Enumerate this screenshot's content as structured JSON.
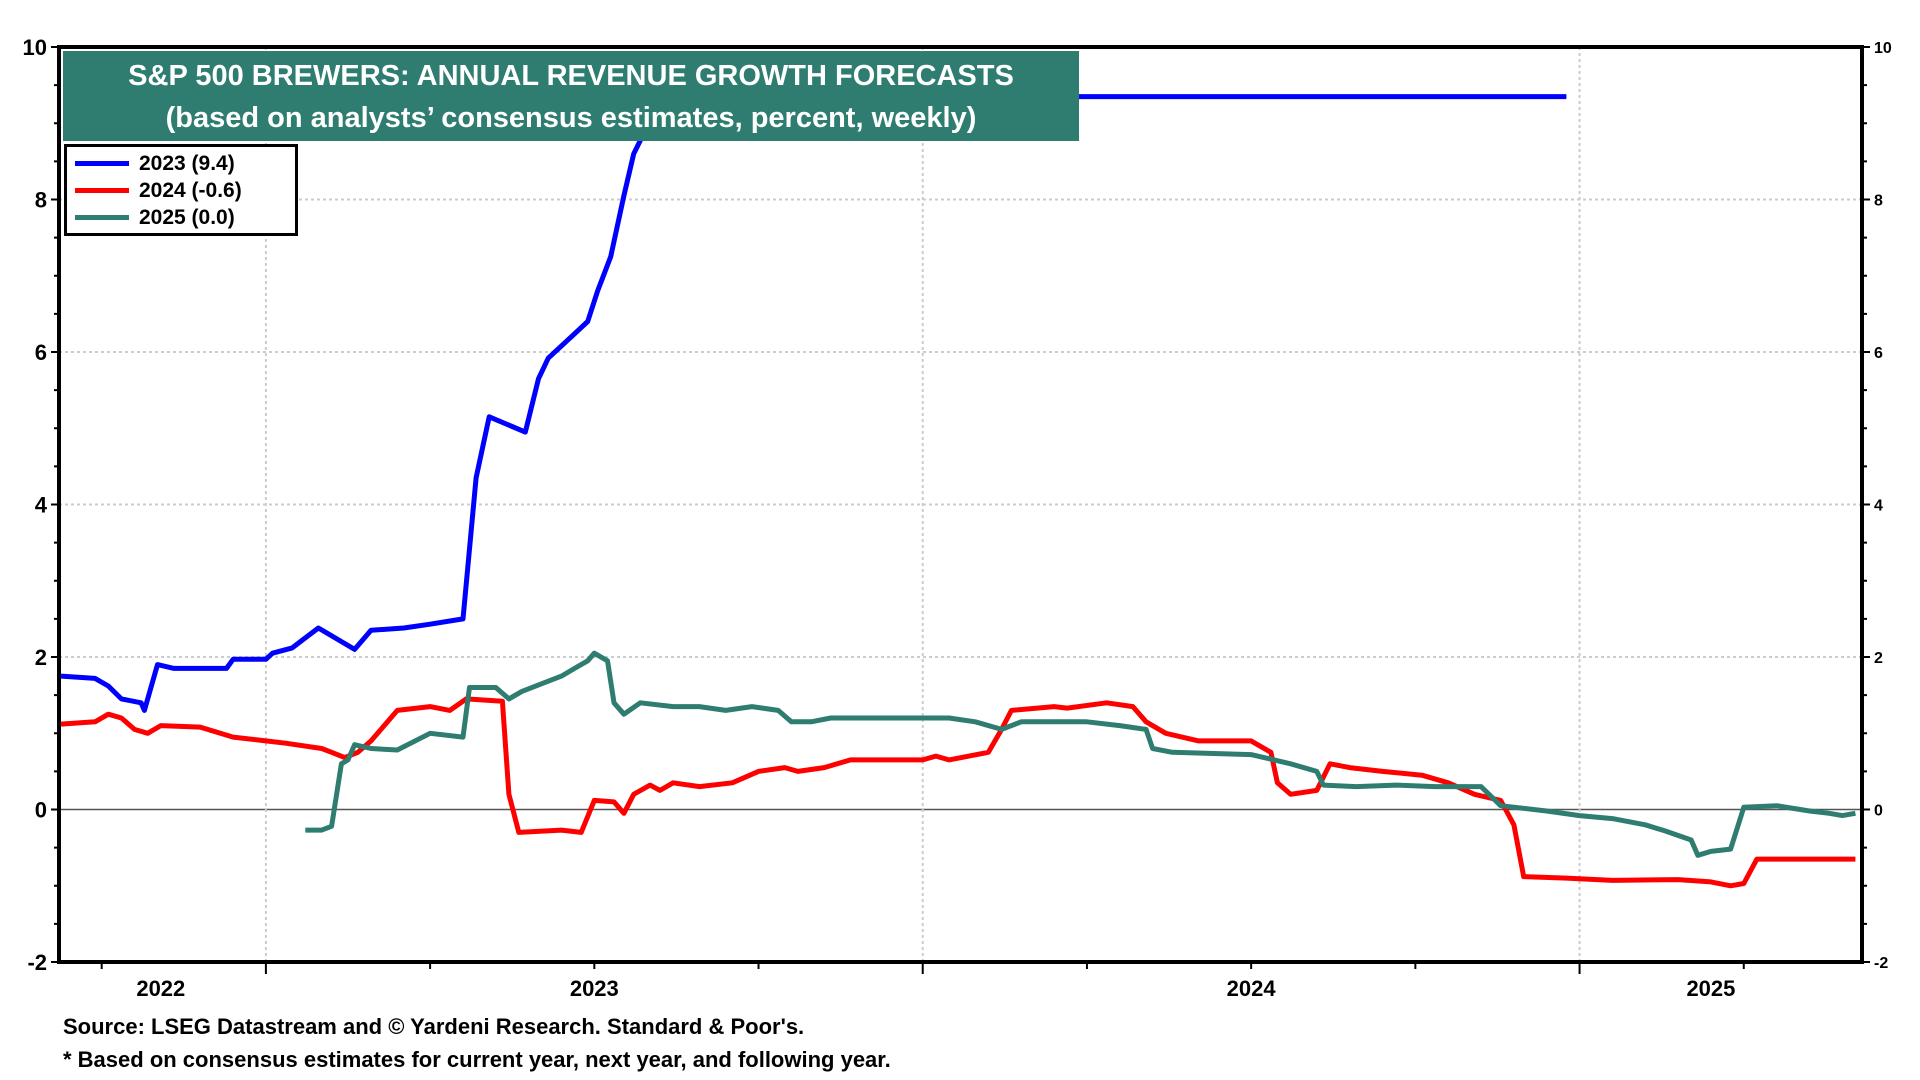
{
  "chart_data": {
    "type": "line",
    "title": "S&P 500 BREWERS: ANNUAL REVENUE GROWTH FORECASTS",
    "subtitle": "(based on analysts’ consensus estimates, percent, weekly)",
    "xlabel": "",
    "ylabel": "",
    "ylim": [
      -2,
      10
    ],
    "yticks": [
      -2,
      0,
      2,
      4,
      6,
      8,
      10
    ],
    "ytick_labels": [
      "-2",
      "0",
      "2",
      "4",
      "6",
      "8",
      "10"
    ],
    "xlim": [
      2022.685,
      2025.43
    ],
    "x_year_labels": [
      {
        "label": "2022",
        "x": 2022.84
      },
      {
        "label": "2023",
        "x": 2023.5
      },
      {
        "label": "2024",
        "x": 2024.5
      },
      {
        "label": "2025",
        "x": 2025.2
      }
    ],
    "year_boundaries": [
      2023,
      2024,
      2025
    ],
    "grid": true,
    "legend_position": "top-left",
    "series": [
      {
        "name": "2023 (9.4)",
        "color": "#0000ff",
        "points": [
          [
            2022.688,
            1.75
          ],
          [
            2022.74,
            1.72
          ],
          [
            2022.76,
            1.62
          ],
          [
            2022.78,
            1.45
          ],
          [
            2022.81,
            1.4
          ],
          [
            2022.815,
            1.3
          ],
          [
            2022.835,
            1.9
          ],
          [
            2022.86,
            1.85
          ],
          [
            2022.94,
            1.85
          ],
          [
            2022.95,
            1.97
          ],
          [
            2023.0,
            1.97
          ],
          [
            2023.01,
            2.05
          ],
          [
            2023.04,
            2.12
          ],
          [
            2023.06,
            2.25
          ],
          [
            2023.08,
            2.38
          ],
          [
            2023.135,
            2.1
          ],
          [
            2023.16,
            2.35
          ],
          [
            2023.21,
            2.38
          ],
          [
            2023.25,
            2.43
          ],
          [
            2023.3,
            2.5
          ],
          [
            2023.32,
            4.35
          ],
          [
            2023.34,
            5.15
          ],
          [
            2023.395,
            4.95
          ],
          [
            2023.415,
            5.65
          ],
          [
            2023.43,
            5.92
          ],
          [
            2023.465,
            6.2
          ],
          [
            2023.49,
            6.4
          ],
          [
            2023.505,
            6.8
          ],
          [
            2023.525,
            7.25
          ],
          [
            2023.545,
            8.05
          ],
          [
            2023.56,
            8.6
          ],
          [
            2023.58,
            8.95
          ],
          [
            2023.6,
            9.35
          ],
          [
            2024.98,
            9.35
          ]
        ]
      },
      {
        "name": "2024 (-0.6)",
        "color": "#ff0000",
        "points": [
          [
            2022.688,
            1.12
          ],
          [
            2022.74,
            1.15
          ],
          [
            2022.76,
            1.25
          ],
          [
            2022.78,
            1.2
          ],
          [
            2022.8,
            1.05
          ],
          [
            2022.82,
            1.0
          ],
          [
            2022.84,
            1.1
          ],
          [
            2022.9,
            1.08
          ],
          [
            2022.95,
            0.95
          ],
          [
            2023.0,
            0.9
          ],
          [
            2023.03,
            0.87
          ],
          [
            2023.085,
            0.8
          ],
          [
            2023.1,
            0.75
          ],
          [
            2023.12,
            0.68
          ],
          [
            2023.14,
            0.75
          ],
          [
            2023.16,
            0.9
          ],
          [
            2023.2,
            1.3
          ],
          [
            2023.25,
            1.35
          ],
          [
            2023.28,
            1.3
          ],
          [
            2023.305,
            1.45
          ],
          [
            2023.36,
            1.42
          ],
          [
            2023.37,
            0.2
          ],
          [
            2023.385,
            -0.3
          ],
          [
            2023.45,
            -0.27
          ],
          [
            2023.48,
            -0.3
          ],
          [
            2023.5,
            0.12
          ],
          [
            2023.53,
            0.1
          ],
          [
            2023.545,
            -0.05
          ],
          [
            2023.56,
            0.2
          ],
          [
            2023.585,
            0.32
          ],
          [
            2023.6,
            0.25
          ],
          [
            2023.62,
            0.35
          ],
          [
            2023.66,
            0.3
          ],
          [
            2023.71,
            0.35
          ],
          [
            2023.75,
            0.5
          ],
          [
            2023.79,
            0.55
          ],
          [
            2023.81,
            0.5
          ],
          [
            2023.85,
            0.55
          ],
          [
            2023.89,
            0.65
          ],
          [
            2024.0,
            0.65
          ],
          [
            2024.02,
            0.7
          ],
          [
            2024.04,
            0.65
          ],
          [
            2024.1,
            0.75
          ],
          [
            2024.12,
            1.05
          ],
          [
            2024.135,
            1.3
          ],
          [
            2024.2,
            1.35
          ],
          [
            2024.22,
            1.33
          ],
          [
            2024.28,
            1.4
          ],
          [
            2024.32,
            1.35
          ],
          [
            2024.34,
            1.15
          ],
          [
            2024.37,
            1.0
          ],
          [
            2024.42,
            0.9
          ],
          [
            2024.5,
            0.9
          ],
          [
            2024.53,
            0.75
          ],
          [
            2024.54,
            0.35
          ],
          [
            2024.56,
            0.2
          ],
          [
            2024.6,
            0.25
          ],
          [
            2024.62,
            0.6
          ],
          [
            2024.65,
            0.55
          ],
          [
            2024.7,
            0.5
          ],
          [
            2024.76,
            0.45
          ],
          [
            2024.8,
            0.35
          ],
          [
            2024.84,
            0.2
          ],
          [
            2024.88,
            0.12
          ],
          [
            2024.9,
            -0.2
          ],
          [
            2024.915,
            -0.88
          ],
          [
            2024.98,
            -0.9
          ],
          [
            2025.05,
            -0.93
          ],
          [
            2025.15,
            -0.92
          ],
          [
            2025.2,
            -0.95
          ],
          [
            2025.23,
            -1.0
          ],
          [
            2025.25,
            -0.97
          ],
          [
            2025.27,
            -0.65
          ],
          [
            2025.42,
            -0.65
          ]
        ]
      },
      {
        "name": "2025 (0.0)",
        "color": "#2e7d70",
        "points": [
          [
            2023.06,
            -0.27
          ],
          [
            2023.085,
            -0.27
          ],
          [
            2023.1,
            -0.22
          ],
          [
            2023.115,
            0.6
          ],
          [
            2023.125,
            0.65
          ],
          [
            2023.135,
            0.85
          ],
          [
            2023.16,
            0.8
          ],
          [
            2023.2,
            0.78
          ],
          [
            2023.25,
            1.0
          ],
          [
            2023.3,
            0.95
          ],
          [
            2023.31,
            1.6
          ],
          [
            2023.35,
            1.6
          ],
          [
            2023.37,
            1.45
          ],
          [
            2023.39,
            1.55
          ],
          [
            2023.42,
            1.65
          ],
          [
            2023.45,
            1.75
          ],
          [
            2023.47,
            1.85
          ],
          [
            2023.49,
            1.95
          ],
          [
            2023.5,
            2.05
          ],
          [
            2023.52,
            1.95
          ],
          [
            2023.53,
            1.4
          ],
          [
            2023.545,
            1.25
          ],
          [
            2023.57,
            1.4
          ],
          [
            2023.62,
            1.35
          ],
          [
            2023.66,
            1.35
          ],
          [
            2023.7,
            1.3
          ],
          [
            2023.74,
            1.35
          ],
          [
            2023.78,
            1.3
          ],
          [
            2023.8,
            1.15
          ],
          [
            2023.83,
            1.15
          ],
          [
            2023.86,
            1.2
          ],
          [
            2024.0,
            1.2
          ],
          [
            2024.04,
            1.2
          ],
          [
            2024.08,
            1.15
          ],
          [
            2024.12,
            1.05
          ],
          [
            2024.15,
            1.15
          ],
          [
            2024.25,
            1.15
          ],
          [
            2024.3,
            1.1
          ],
          [
            2024.34,
            1.05
          ],
          [
            2024.35,
            0.8
          ],
          [
            2024.38,
            0.75
          ],
          [
            2024.5,
            0.72
          ],
          [
            2024.56,
            0.6
          ],
          [
            2024.6,
            0.5
          ],
          [
            2024.61,
            0.32
          ],
          [
            2024.66,
            0.3
          ],
          [
            2024.72,
            0.32
          ],
          [
            2024.78,
            0.3
          ],
          [
            2024.85,
            0.3
          ],
          [
            2024.88,
            0.05
          ],
          [
            2024.95,
            -0.02
          ],
          [
            2025.0,
            -0.08
          ],
          [
            2025.05,
            -0.12
          ],
          [
            2025.1,
            -0.2
          ],
          [
            2025.13,
            -0.28
          ],
          [
            2025.17,
            -0.4
          ],
          [
            2025.18,
            -0.6
          ],
          [
            2025.2,
            -0.55
          ],
          [
            2025.23,
            -0.52
          ],
          [
            2025.25,
            0.03
          ],
          [
            2025.3,
            0.05
          ],
          [
            2025.35,
            -0.02
          ],
          [
            2025.38,
            -0.05
          ],
          [
            2025.4,
            -0.08
          ],
          [
            2025.42,
            -0.05
          ]
        ]
      }
    ]
  },
  "legend": {
    "items": [
      {
        "label": "2023 (9.4)",
        "color": "#0000ff"
      },
      {
        "label": "2024 (-0.6)",
        "color": "#ff0000"
      },
      {
        "label": "2025 (0.0)",
        "color": "#2e7d70"
      }
    ]
  },
  "title_box": {
    "title": "S&P 500 BREWERS: ANNUAL REVENUE GROWTH FORECASTS",
    "subtitle": "(based on analysts’ consensus estimates, percent, weekly)"
  },
  "footnotes": {
    "source": "Source: LSEG Datastream and © Yardeni Research. Standard & Poor's.",
    "note": "* Based on consensus estimates for current year, next year, and following year."
  },
  "colors": {
    "title_bg": "#2e7d70",
    "grid": "#cccccc",
    "zero_line": "#555555"
  }
}
